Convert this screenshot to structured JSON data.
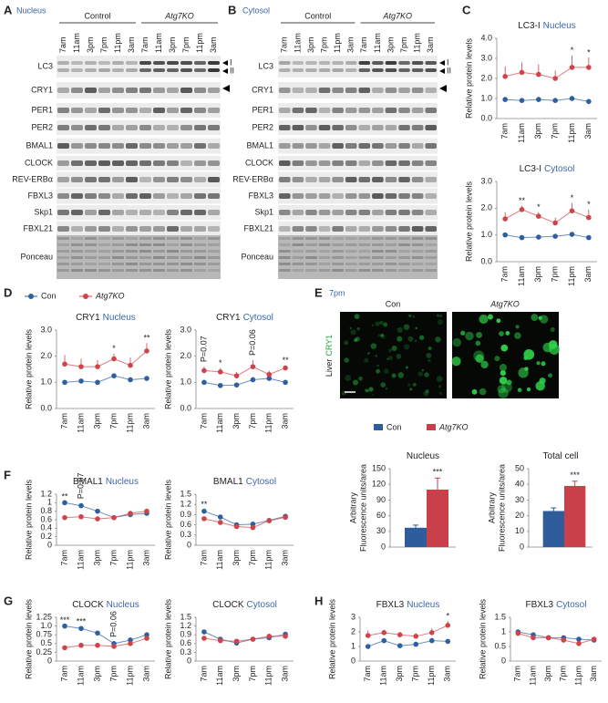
{
  "panel_labels": [
    "A",
    "B",
    "C",
    "D",
    "E",
    "F",
    "G",
    "H"
  ],
  "blots": [
    {
      "compartment": "Nucleus",
      "groups": [
        "Control",
        "Atg7KO"
      ],
      "lanes": [
        "7am",
        "11am",
        "3pm",
        "7pm",
        "11pm",
        "3am",
        "7am",
        "11am",
        "3pm",
        "7pm",
        "11pm",
        "3am"
      ],
      "rows": [
        "LC3",
        "CRY1",
        "PER1",
        "PER2",
        "BMAL1",
        "CLOCK",
        "REV-ERBα",
        "FBXL3",
        "Skp1",
        "FBXL21",
        "Ponceau"
      ],
      "markers": [
        "I",
        "II"
      ]
    },
    {
      "compartment": "Cytosol",
      "groups": [
        "Control",
        "Atg7KO"
      ],
      "lanes": [
        "7am",
        "11am",
        "3pm",
        "7pm",
        "11pm",
        "3am",
        "7am",
        "11am",
        "3pm",
        "7pm",
        "11pm",
        "3am"
      ],
      "rows": [
        "LC3",
        "CRY1",
        "PER1",
        "PER2",
        "BMAL1",
        "CLOCK",
        "REV-ERBα",
        "FBXL3",
        "Skp1",
        "FBXL21",
        "Ponceau"
      ],
      "markers": [
        "I",
        "II"
      ]
    }
  ],
  "micrograph": {
    "time": "7pm",
    "columns": [
      "Con",
      "Atg7KO"
    ],
    "tissue": "Liver",
    "stain": "CRY1"
  },
  "chart_data": [
    {
      "type": "line",
      "title": "LC3-I",
      "subtitle": "Nucleus",
      "ylabel": "Relative protein levels",
      "categories": [
        "7am",
        "11am",
        "3pm",
        "7pm",
        "11pm",
        "3am"
      ],
      "ylim": [
        0,
        4
      ],
      "yticks": [
        {
          "value": 0,
          "label": "0.0"
        },
        {
          "value": 1,
          "label": "1.0"
        },
        {
          "value": 2,
          "label": "2.0"
        },
        {
          "value": 3,
          "label": "3.0"
        },
        {
          "value": 4,
          "label": "4.0"
        }
      ],
      "series": [
        {
          "name": "Con",
          "color": "#2e5f9e",
          "values": [
            0.95,
            0.9,
            0.95,
            0.9,
            1.0,
            0.85
          ]
        },
        {
          "name": "Atg7KO",
          "color": "#d0434a",
          "values": [
            2.1,
            2.3,
            2.2,
            2.0,
            2.55,
            2.55
          ],
          "errors": [
            0.5,
            0.5,
            0.5,
            0.4,
            0.6,
            0.5
          ]
        }
      ],
      "annotations": [
        {
          "category": "11pm",
          "text": "*"
        },
        {
          "category": "3am",
          "text": "*"
        }
      ]
    },
    {
      "type": "line",
      "title": "LC3-I",
      "subtitle": "Cytosol",
      "ylabel": "Relative protein levels",
      "categories": [
        "7am",
        "11am",
        "3pm",
        "7pm",
        "11pm",
        "3am"
      ],
      "ylim": [
        0,
        3
      ],
      "yticks": [
        {
          "value": 0,
          "label": "0.0"
        },
        {
          "value": 1,
          "label": "1.0"
        },
        {
          "value": 2,
          "label": "2.0"
        },
        {
          "value": 3,
          "label": "3.0"
        }
      ],
      "series": [
        {
          "name": "Con",
          "color": "#2e5f9e",
          "values": [
            1.0,
            0.9,
            0.92,
            0.95,
            1.02,
            0.9
          ]
        },
        {
          "name": "Atg7KO",
          "color": "#d0434a",
          "values": [
            1.6,
            1.95,
            1.7,
            1.45,
            1.9,
            1.65
          ],
          "errors": [
            0.25,
            0.15,
            0.15,
            0.2,
            0.3,
            0.3
          ]
        }
      ],
      "annotations": [
        {
          "category": "11am",
          "text": "**"
        },
        {
          "category": "3pm",
          "text": "*"
        },
        {
          "category": "11pm",
          "text": "*"
        },
        {
          "category": "3am",
          "text": "*"
        }
      ]
    },
    {
      "type": "line",
      "title": "CRY1",
      "subtitle": "Nucleus",
      "ylabel": "Relative protein levels",
      "categories": [
        "7am",
        "11am",
        "3pm",
        "7pm",
        "11pm",
        "3am"
      ],
      "ylim": [
        0,
        3
      ],
      "yticks": [
        {
          "value": 0,
          "label": "0.0"
        },
        {
          "value": 1,
          "label": "1.0"
        },
        {
          "value": 2,
          "label": "2.0"
        },
        {
          "value": 3,
          "label": "3.0"
        }
      ],
      "series": [
        {
          "name": "Con",
          "color": "#2e5f9e",
          "values": [
            1.0,
            1.05,
            1.0,
            1.25,
            1.1,
            1.15
          ]
        },
        {
          "name": "Atg7KO",
          "color": "#d0434a",
          "values": [
            1.7,
            1.6,
            1.6,
            1.9,
            1.65,
            2.2
          ],
          "errors": [
            0.35,
            0.3,
            0.25,
            0.2,
            0.3,
            0.3
          ]
        }
      ],
      "annotations": [
        {
          "category": "7pm",
          "text": "*"
        },
        {
          "category": "3am",
          "text": "**"
        }
      ]
    },
    {
      "type": "line",
      "title": "CRY1",
      "subtitle": "Cytosol",
      "ylabel": "Relative protein levels",
      "categories": [
        "7am",
        "11am",
        "3pm",
        "7pm",
        "11pm",
        "3am"
      ],
      "ylim": [
        0,
        3
      ],
      "yticks": [
        {
          "value": 0,
          "label": "0.0"
        },
        {
          "value": 1,
          "label": "1.0"
        },
        {
          "value": 2,
          "label": "2.0"
        },
        {
          "value": 3,
          "label": "3.0"
        }
      ],
      "series": [
        {
          "name": "Con",
          "color": "#2e5f9e",
          "values": [
            1.0,
            0.88,
            0.9,
            1.1,
            1.15,
            1.0
          ]
        },
        {
          "name": "Atg7KO",
          "color": "#d0434a",
          "values": [
            1.45,
            1.4,
            1.25,
            1.6,
            1.3,
            1.55
          ],
          "errors": [
            0.15,
            0.15,
            0.15,
            0.25,
            0.15,
            0.1
          ]
        }
      ],
      "annotations": [
        {
          "category": "7am",
          "text": "P=0.07"
        },
        {
          "category": "11am",
          "text": "*"
        },
        {
          "category": "7pm",
          "text": "P=0.06"
        },
        {
          "category": "3am",
          "text": "**"
        }
      ]
    },
    {
      "type": "bar",
      "title": "Nucleus",
      "ylabel": [
        "Arbitrary",
        "Fluorescence units/area"
      ],
      "categories": [
        null
      ],
      "ylim": [
        0,
        150
      ],
      "yticks": [
        0,
        30,
        60,
        90,
        120,
        150
      ],
      "series": [
        {
          "name": "Con",
          "color": "#2f5c9a",
          "values": [
            37
          ],
          "errors": [
            5
          ]
        },
        {
          "name": "Atg7KO",
          "color": "#c9404a",
          "values": [
            110
          ],
          "errors": [
            22
          ]
        }
      ],
      "annotations": [
        {
          "text": "***"
        }
      ]
    },
    {
      "type": "bar",
      "title": "Total cell",
      "ylabel": [
        "Arbitrary",
        "Fluorescence units/area"
      ],
      "categories": [
        null
      ],
      "ylim": [
        0,
        50
      ],
      "yticks": [
        0,
        10,
        20,
        30,
        40,
        50
      ],
      "series": [
        {
          "name": "Con",
          "color": "#2f5c9a",
          "values": [
            23
          ],
          "errors": [
            2
          ]
        },
        {
          "name": "Atg7KO",
          "color": "#c9404a",
          "values": [
            39
          ],
          "errors": [
            3
          ]
        }
      ],
      "annotations": [
        {
          "text": "***"
        }
      ]
    },
    {
      "type": "line",
      "title": "BMAL1",
      "subtitle": "Nucleus",
      "ylabel": "Relative protein levels",
      "categories": [
        "7am",
        "11am",
        "3pm",
        "7pm",
        "11pm",
        "3am"
      ],
      "ylim": [
        0,
        1.2
      ],
      "yticks": [
        0,
        0.2,
        0.4,
        0.6,
        0.8,
        1,
        1.2
      ],
      "series": [
        {
          "name": "Con",
          "color": "#2e5f9e",
          "values": [
            1.0,
            0.93,
            0.8,
            0.65,
            0.72,
            0.75
          ],
          "errors": [
            0.03,
            0.05,
            0.05,
            0.04,
            0.06,
            0.05
          ]
        },
        {
          "name": "Atg7KO",
          "color": "#d0434a",
          "values": [
            0.65,
            0.67,
            0.62,
            0.65,
            0.75,
            0.8
          ],
          "errors": [
            0.04,
            0.05,
            0.04,
            0.04,
            0.05,
            0.06
          ]
        }
      ],
      "annotations": [
        {
          "category": "7am",
          "text": "**"
        },
        {
          "category": "11am",
          "text": "P=0.07"
        }
      ]
    },
    {
      "type": "line",
      "title": "BMAL1",
      "subtitle": "Cytosol",
      "ylabel": "Relative protein levels",
      "categories": [
        "7am",
        "11am",
        "3pm",
        "7pm",
        "11pm",
        "3am"
      ],
      "ylim": [
        0,
        1.5
      ],
      "yticks": [
        0,
        0.3,
        0.6,
        0.9,
        1.2,
        1.5
      ],
      "series": [
        {
          "name": "Con",
          "color": "#2e5f9e",
          "values": [
            1.0,
            0.83,
            0.6,
            0.62,
            0.73,
            0.85
          ],
          "errors": [
            0.05,
            0.05,
            0.05,
            0.05,
            0.06,
            0.06
          ]
        },
        {
          "name": "Atg7KO",
          "color": "#d0434a",
          "values": [
            0.78,
            0.67,
            0.55,
            0.52,
            0.72,
            0.82
          ],
          "errors": [
            0.05,
            0.05,
            0.04,
            0.05,
            0.05,
            0.06
          ]
        }
      ],
      "annotations": [
        {
          "category": "7am",
          "text": "**"
        }
      ]
    },
    {
      "type": "line",
      "title": "CLOCK",
      "subtitle": "Nucleus",
      "ylabel": "Relative protein levels",
      "categories": [
        "7am",
        "11am",
        "3pm",
        "7pm",
        "11pm",
        "3am"
      ],
      "ylim": [
        0,
        1.25
      ],
      "yticks": [
        0,
        0.25,
        0.5,
        0.75,
        {
          "value": 1,
          "label": "1.0"
        },
        1.25
      ],
      "series": [
        {
          "name": "Con",
          "color": "#2e5f9e",
          "values": [
            1.0,
            0.93,
            0.8,
            0.5,
            0.6,
            0.75
          ],
          "errors": [
            0.03,
            0.05,
            0.06,
            0.05,
            0.08,
            0.06
          ]
        },
        {
          "name": "Atg7KO",
          "color": "#d0434a",
          "values": [
            0.38,
            0.45,
            0.45,
            0.42,
            0.5,
            0.65
          ],
          "errors": [
            0.04,
            0.04,
            0.04,
            0.04,
            0.05,
            0.06
          ]
        }
      ],
      "annotations": [
        {
          "category": "7am",
          "text": "***"
        },
        {
          "category": "11am",
          "text": "***"
        },
        {
          "category": "7pm",
          "text": "P=0.06"
        }
      ]
    },
    {
      "type": "line",
      "title": "CLOCK",
      "subtitle": "Cytosol",
      "ylabel": "Relative protein levels",
      "categories": [
        "7am",
        "11am",
        "3pm",
        "7pm",
        "11pm",
        "3am"
      ],
      "ylim": [
        0,
        1.5
      ],
      "yticks": [
        0,
        0.3,
        0.6,
        0.9,
        1.2,
        1.5
      ],
      "series": [
        {
          "name": "Con",
          "color": "#2e5f9e",
          "values": [
            1.0,
            0.75,
            0.62,
            0.75,
            0.8,
            0.92
          ],
          "errors": [
            0.03,
            0.06,
            0.05,
            0.05,
            0.06,
            0.06
          ]
        },
        {
          "name": "Atg7KO",
          "color": "#d0434a",
          "values": [
            0.78,
            0.7,
            0.68,
            0.75,
            0.85,
            0.85
          ],
          "errors": [
            0.05,
            0.05,
            0.04,
            0.05,
            0.05,
            0.05
          ]
        }
      ],
      "annotations": []
    },
    {
      "type": "line",
      "title": "FBXL3",
      "subtitle": "Nucleus",
      "ylabel": "Relative protein levels",
      "categories": [
        "7am",
        "11am",
        "3pm",
        "7pm",
        "11pm",
        "3am"
      ],
      "ylim": [
        0,
        3
      ],
      "yticks": [
        0,
        1,
        2,
        3
      ],
      "series": [
        {
          "name": "Con",
          "color": "#2e5f9e",
          "values": [
            1.0,
            1.4,
            1.05,
            1.15,
            1.4,
            1.35
          ],
          "errors": [
            0.05,
            0.15,
            0.1,
            0.1,
            0.15,
            0.1
          ]
        },
        {
          "name": "Atg7KO",
          "color": "#d0434a",
          "values": [
            1.75,
            1.95,
            1.8,
            1.7,
            1.95,
            2.45
          ],
          "errors": [
            0.35,
            0.2,
            0.2,
            0.2,
            0.3,
            0.3
          ]
        }
      ],
      "annotations": [
        {
          "category": "3am",
          "text": "*"
        }
      ]
    },
    {
      "type": "line",
      "title": "FBXL3",
      "subtitle": "Cytosol",
      "ylabel": "Relative protein levels",
      "categories": [
        "7am",
        "11am",
        "3pm",
        "7pm",
        "11pm",
        "3am"
      ],
      "ylim": [
        0,
        1.5
      ],
      "yticks": [
        0,
        0.5,
        1,
        1.5
      ],
      "series": [
        {
          "name": "Con",
          "color": "#2e5f9e",
          "values": [
            1.0,
            0.9,
            0.8,
            0.8,
            0.75,
            0.72
          ],
          "errors": [
            0.05,
            0.05,
            0.05,
            0.05,
            0.06,
            0.06
          ]
        },
        {
          "name": "Atg7KO",
          "color": "#d0434a",
          "values": [
            0.95,
            0.8,
            0.8,
            0.72,
            0.6,
            0.75
          ],
          "errors": [
            0.05,
            0.05,
            0.05,
            0.05,
            0.06,
            0.06
          ]
        }
      ],
      "annotations": []
    }
  ]
}
